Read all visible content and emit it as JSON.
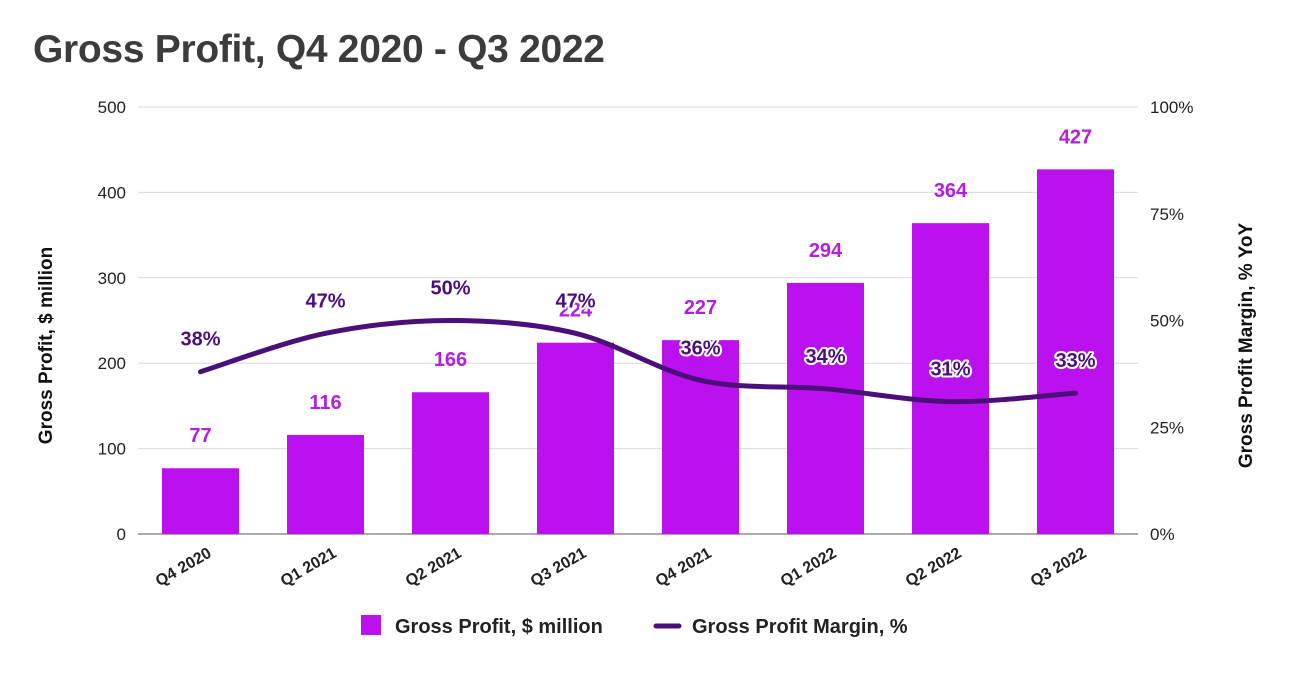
{
  "chart_data": {
    "type": "bar",
    "title": "Gross Profit, Q4 2020 - Q3 2022",
    "categories": [
      "Q4 2020",
      "Q1 2021",
      "Q2 2021",
      "Q3 2021",
      "Q4 2021",
      "Q1 2022",
      "Q2 2022",
      "Q3 2022"
    ],
    "series": [
      {
        "name": "Gross Profit, $ million",
        "type": "bar",
        "axis": "left",
        "values": [
          77,
          116,
          166,
          224,
          227,
          294,
          364,
          427
        ],
        "labels": [
          "77",
          "116",
          "166",
          "224",
          "227",
          "294",
          "364",
          "427"
        ],
        "color": "#bb11ee"
      },
      {
        "name": "Gross Profit Margin, %",
        "type": "line",
        "axis": "right",
        "values": [
          38,
          47,
          50,
          47,
          36,
          34,
          31,
          33
        ],
        "labels": [
          "38%",
          "47%",
          "50%",
          "47%",
          "36%",
          "34%",
          "31%",
          "33%"
        ],
        "color": "#4b0f7a"
      }
    ],
    "ylabel": "Gross Profit, $ million",
    "ylim": [
      0,
      500
    ],
    "yticks": [
      0,
      100,
      200,
      300,
      400,
      500
    ],
    "ytick_labels": [
      "0",
      "100",
      "200",
      "300",
      "400",
      "500"
    ],
    "y2label": "Gross Profit Margin, % YoY",
    "y2lim": [
      0,
      100
    ],
    "y2ticks": [
      0,
      25,
      50,
      75,
      100
    ],
    "y2tick_labels": [
      "0%",
      "25%",
      "50%",
      "75%",
      "100%"
    ],
    "grid": true,
    "legend_position": "bottom-center"
  },
  "colors": {
    "bar": "#bb11ee",
    "line": "#4b0f7a",
    "bar_label": "#b31fe0",
    "line_label": "#4b0f7a",
    "grid": "#d9d9d9",
    "title": "#3c3c3c"
  }
}
